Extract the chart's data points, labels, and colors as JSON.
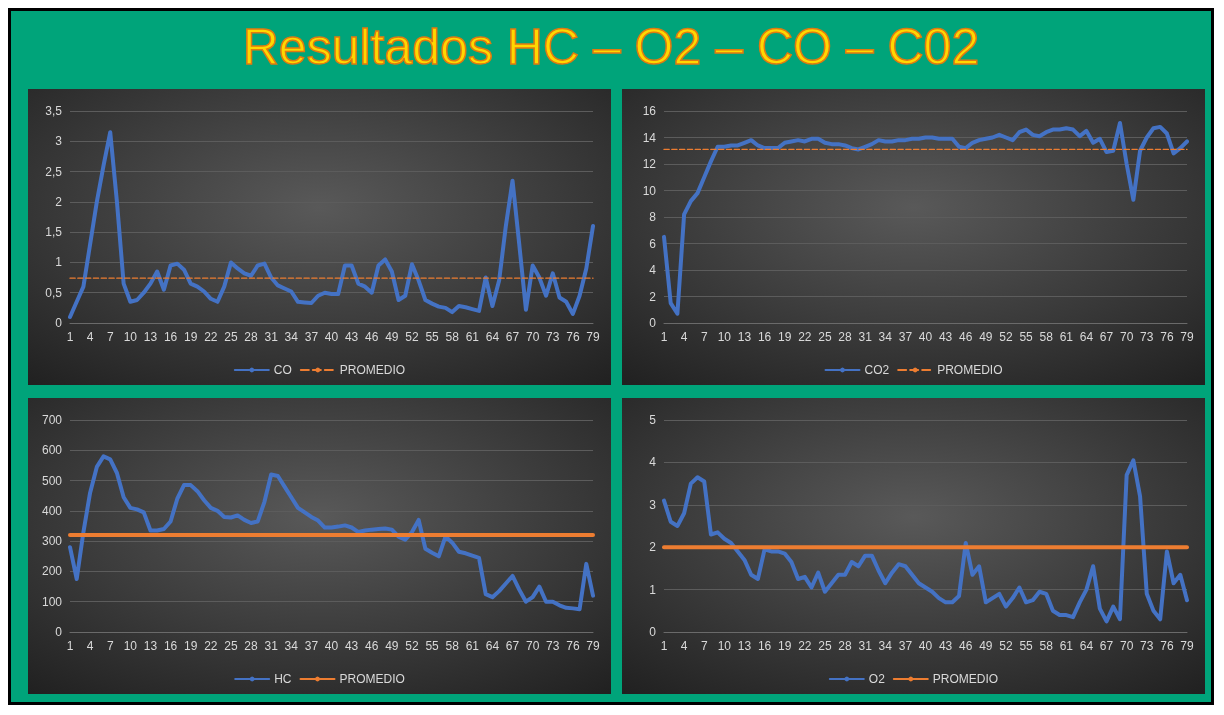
{
  "chart_data": [
    {
      "type": "other",
      "title": "Resultados HC – O2 – CO – C02"
    },
    {
      "type": "line",
      "categories": [
        "1",
        null,
        null,
        "4",
        null,
        null,
        "7",
        null,
        null,
        "10",
        null,
        null,
        "13",
        null,
        null,
        "16",
        null,
        null,
        "19",
        null,
        null,
        "22",
        null,
        null,
        "25",
        null,
        null,
        "28",
        null,
        null,
        "31",
        null,
        null,
        "34",
        null,
        null,
        "37",
        null,
        null,
        "40",
        null,
        null,
        "43",
        null,
        null,
        "46",
        null,
        null,
        "49",
        null,
        null,
        "52",
        null,
        null,
        "55",
        null,
        null,
        "58",
        null,
        null,
        "61",
        null,
        null,
        "64",
        null,
        null,
        "67",
        null,
        null,
        "70",
        null,
        null,
        "73",
        null,
        null,
        "76",
        null,
        null,
        "79"
      ],
      "ylim": [
        0,
        3.5
      ],
      "yticks": [
        0,
        {
          "value": 0.5,
          "label": "0,5"
        },
        1,
        {
          "value": 1.5,
          "label": "1,5"
        },
        2,
        {
          "value": 2.5,
          "label": "2,5"
        },
        3,
        {
          "value": 3.5,
          "label": "3,5"
        }
      ],
      "grid": "y",
      "legend": "bottom",
      "marker": "none",
      "series": [
        {
          "name": "CO",
          "color": "#4472c4",
          "line_style": "solid",
          "values": [
            0.1,
            0.35,
            0.6,
            1.3,
            2.0,
            2.6,
            3.15,
            2.0,
            0.65,
            0.35,
            0.38,
            0.5,
            0.65,
            0.85,
            0.55,
            0.95,
            0.98,
            0.88,
            0.65,
            0.6,
            0.52,
            0.4,
            0.35,
            0.6,
            1.0,
            0.9,
            0.82,
            0.78,
            0.95,
            0.98,
            0.75,
            0.62,
            0.57,
            0.52,
            0.35,
            0.34,
            0.33,
            0.45,
            0.5,
            0.48,
            0.48,
            0.95,
            0.95,
            0.65,
            0.6,
            0.5,
            0.95,
            1.05,
            0.85,
            0.38,
            0.45,
            0.97,
            0.7,
            0.38,
            0.32,
            0.27,
            0.25,
            0.18,
            0.28,
            0.26,
            0.23,
            0.2,
            0.75,
            0.28,
            0.7,
            1.6,
            2.35,
            1.3,
            0.22,
            0.95,
            0.75,
            0.45,
            0.82,
            0.42,
            0.35,
            0.15,
            0.45,
            0.9,
            1.6
          ]
        },
        {
          "name": "PROMEDIO",
          "color": "#ed7d31",
          "line_style": "dashed",
          "values": [
            0.74,
            0.74,
            0.74,
            0.74,
            0.74,
            0.74,
            0.74,
            0.74,
            0.74,
            0.74,
            0.74,
            0.74,
            0.74,
            0.74,
            0.74,
            0.74,
            0.74,
            0.74,
            0.74,
            0.74,
            0.74,
            0.74,
            0.74,
            0.74,
            0.74,
            0.74,
            0.74,
            0.74,
            0.74,
            0.74,
            0.74,
            0.74,
            0.74,
            0.74,
            0.74,
            0.74,
            0.74,
            0.74,
            0.74,
            0.74,
            0.74,
            0.74,
            0.74,
            0.74,
            0.74,
            0.74,
            0.74,
            0.74,
            0.74,
            0.74,
            0.74,
            0.74,
            0.74,
            0.74,
            0.74,
            0.74,
            0.74,
            0.74,
            0.74,
            0.74,
            0.74,
            0.74,
            0.74,
            0.74,
            0.74,
            0.74,
            0.74,
            0.74,
            0.74,
            0.74,
            0.74,
            0.74,
            0.74,
            0.74,
            0.74,
            0.74,
            0.74,
            0.74,
            0.74
          ]
        }
      ]
    },
    {
      "type": "line",
      "categories": [
        "1",
        null,
        null,
        "4",
        null,
        null,
        "7",
        null,
        null,
        "10",
        null,
        null,
        "13",
        null,
        null,
        "16",
        null,
        null,
        "19",
        null,
        null,
        "22",
        null,
        null,
        "25",
        null,
        null,
        "28",
        null,
        null,
        "31",
        null,
        null,
        "34",
        null,
        null,
        "37",
        null,
        null,
        "40",
        null,
        null,
        "43",
        null,
        null,
        "46",
        null,
        null,
        "49",
        null,
        null,
        "52",
        null,
        null,
        "55",
        null,
        null,
        "58",
        null,
        null,
        "61",
        null,
        null,
        "64",
        null,
        null,
        "67",
        null,
        null,
        "70",
        null,
        null,
        "73",
        null,
        null,
        "76",
        null,
        null,
        "79"
      ],
      "ylim": [
        0,
        16
      ],
      "yticks": [
        0,
        2,
        4,
        6,
        8,
        10,
        12,
        14,
        16
      ],
      "grid": "y",
      "legend": "bottom",
      "marker": "none",
      "series": [
        {
          "name": "CO2",
          "color": "#4472c4",
          "line_style": "solid",
          "values": [
            6.5,
            1.5,
            0.7,
            8.2,
            9.2,
            9.8,
            11,
            12.2,
            13.3,
            13.3,
            13.4,
            13.4,
            13.6,
            13.8,
            13.4,
            13.2,
            13.2,
            13.2,
            13.6,
            13.7,
            13.8,
            13.7,
            13.9,
            13.9,
            13.6,
            13.5,
            13.5,
            13.4,
            13.2,
            13.1,
            13.3,
            13.5,
            13.8,
            13.7,
            13.7,
            13.8,
            13.8,
            13.9,
            13.9,
            14.0,
            14.0,
            13.9,
            13.9,
            13.9,
            13.3,
            13.2,
            13.6,
            13.8,
            13.9,
            14.0,
            14.2,
            14.0,
            13.8,
            14.4,
            14.6,
            14.2,
            14.1,
            14.4,
            14.6,
            14.6,
            14.7,
            14.6,
            14.1,
            14.5,
            13.6,
            13.9,
            12.9,
            13.0,
            15.1,
            12.0,
            9.3,
            13.0,
            14.0,
            14.7,
            14.8,
            14.3,
            12.8,
            13.2,
            13.7
          ]
        },
        {
          "name": "PROMEDIO",
          "color": "#ed7d31",
          "line_style": "dashed",
          "values": [
            13.1,
            13.1,
            13.1,
            13.1,
            13.1,
            13.1,
            13.1,
            13.1,
            13.1,
            13.1,
            13.1,
            13.1,
            13.1,
            13.1,
            13.1,
            13.1,
            13.1,
            13.1,
            13.1,
            13.1,
            13.1,
            13.1,
            13.1,
            13.1,
            13.1,
            13.1,
            13.1,
            13.1,
            13.1,
            13.1,
            13.1,
            13.1,
            13.1,
            13.1,
            13.1,
            13.1,
            13.1,
            13.1,
            13.1,
            13.1,
            13.1,
            13.1,
            13.1,
            13.1,
            13.1,
            13.1,
            13.1,
            13.1,
            13.1,
            13.1,
            13.1,
            13.1,
            13.1,
            13.1,
            13.1,
            13.1,
            13.1,
            13.1,
            13.1,
            13.1,
            13.1,
            13.1,
            13.1,
            13.1,
            13.1,
            13.1,
            13.1,
            13.1,
            13.1,
            13.1,
            13.1,
            13.1,
            13.1,
            13.1,
            13.1,
            13.1,
            13.1,
            13.1,
            13.1
          ]
        }
      ]
    },
    {
      "type": "line",
      "categories": [
        "1",
        null,
        null,
        "4",
        null,
        null,
        "7",
        null,
        null,
        "10",
        null,
        null,
        "13",
        null,
        null,
        "16",
        null,
        null,
        "19",
        null,
        null,
        "22",
        null,
        null,
        "25",
        null,
        null,
        "28",
        null,
        null,
        "31",
        null,
        null,
        "34",
        null,
        null,
        "37",
        null,
        null,
        "40",
        null,
        null,
        "43",
        null,
        null,
        "46",
        null,
        null,
        "49",
        null,
        null,
        "52",
        null,
        null,
        "55",
        null,
        null,
        "58",
        null,
        null,
        "61",
        null,
        null,
        "64",
        null,
        null,
        "67",
        null,
        null,
        "70",
        null,
        null,
        "73",
        null,
        null,
        "76",
        null,
        null,
        "79"
      ],
      "ylim": [
        0,
        700
      ],
      "yticks": [
        0,
        100,
        200,
        300,
        400,
        500,
        600,
        700
      ],
      "grid": "y",
      "legend": "bottom",
      "marker": "none",
      "series": [
        {
          "name": "HC",
          "color": "#4472c4",
          "line_style": "solid",
          "values": [
            280,
            175,
            330,
            460,
            545,
            580,
            570,
            525,
            445,
            410,
            405,
            395,
            335,
            335,
            340,
            365,
            440,
            485,
            485,
            465,
            435,
            410,
            400,
            380,
            378,
            385,
            370,
            360,
            365,
            430,
            520,
            515,
            480,
            445,
            410,
            395,
            380,
            368,
            345,
            345,
            348,
            352,
            345,
            330,
            335,
            338,
            340,
            342,
            338,
            315,
            305,
            330,
            370,
            275,
            262,
            250,
            315,
            295,
            265,
            260,
            252,
            245,
            125,
            115,
            135,
            160,
            185,
            140,
            100,
            115,
            150,
            100,
            100,
            88,
            80,
            78,
            75,
            225,
            120
          ]
        },
        {
          "name": "PROMEDIO",
          "color": "#ed7d31",
          "line_style": "solid",
          "values": [
            320,
            320,
            320,
            320,
            320,
            320,
            320,
            320,
            320,
            320,
            320,
            320,
            320,
            320,
            320,
            320,
            320,
            320,
            320,
            320,
            320,
            320,
            320,
            320,
            320,
            320,
            320,
            320,
            320,
            320,
            320,
            320,
            320,
            320,
            320,
            320,
            320,
            320,
            320,
            320,
            320,
            320,
            320,
            320,
            320,
            320,
            320,
            320,
            320,
            320,
            320,
            320,
            320,
            320,
            320,
            320,
            320,
            320,
            320,
            320,
            320,
            320,
            320,
            320,
            320,
            320,
            320,
            320,
            320,
            320,
            320,
            320,
            320,
            320,
            320,
            320,
            320,
            320,
            320
          ]
        }
      ]
    },
    {
      "type": "line",
      "categories": [
        "1",
        null,
        null,
        "4",
        null,
        null,
        "7",
        null,
        null,
        "10",
        null,
        null,
        "13",
        null,
        null,
        "16",
        null,
        null,
        "19",
        null,
        null,
        "22",
        null,
        null,
        "25",
        null,
        null,
        "28",
        null,
        null,
        "31",
        null,
        null,
        "34",
        null,
        null,
        "37",
        null,
        null,
        "40",
        null,
        null,
        "43",
        null,
        null,
        "46",
        null,
        null,
        "49",
        null,
        null,
        "52",
        null,
        null,
        "55",
        null,
        null,
        "58",
        null,
        null,
        "61",
        null,
        null,
        "64",
        null,
        null,
        "67",
        null,
        null,
        "70",
        null,
        null,
        "73",
        null,
        null,
        "76",
        null,
        null,
        "79"
      ],
      "ylim": [
        0,
        5
      ],
      "yticks": [
        0,
        1,
        2,
        3,
        4,
        5
      ],
      "grid": "y",
      "legend": "bottom",
      "marker": "none",
      "series": [
        {
          "name": "O2",
          "color": "#4472c4",
          "line_style": "solid",
          "values": [
            3.1,
            2.6,
            2.5,
            2.8,
            3.5,
            3.65,
            3.55,
            2.3,
            2.35,
            2.2,
            2.1,
            1.9,
            1.7,
            1.35,
            1.25,
            1.95,
            1.9,
            1.9,
            1.85,
            1.65,
            1.25,
            1.3,
            1.05,
            1.4,
            0.95,
            1.15,
            1.35,
            1.35,
            1.65,
            1.55,
            1.8,
            1.8,
            1.45,
            1.15,
            1.4,
            1.6,
            1.55,
            1.35,
            1.15,
            1.05,
            0.95,
            0.8,
            0.7,
            0.7,
            0.85,
            2.1,
            1.35,
            1.55,
            0.7,
            0.8,
            0.9,
            0.6,
            0.8,
            1.05,
            0.7,
            0.75,
            0.95,
            0.9,
            0.5,
            0.4,
            0.4,
            0.35,
            0.7,
            1.0,
            1.55,
            0.55,
            0.25,
            0.6,
            0.3,
            3.7,
            4.05,
            3.2,
            0.9,
            0.5,
            0.3,
            1.9,
            1.15,
            1.35,
            0.75
          ]
        },
        {
          "name": "PROMEDIO",
          "color": "#ed7d31",
          "line_style": "solid",
          "values": [
            2,
            2,
            2,
            2,
            2,
            2,
            2,
            2,
            2,
            2,
            2,
            2,
            2,
            2,
            2,
            2,
            2,
            2,
            2,
            2,
            2,
            2,
            2,
            2,
            2,
            2,
            2,
            2,
            2,
            2,
            2,
            2,
            2,
            2,
            2,
            2,
            2,
            2,
            2,
            2,
            2,
            2,
            2,
            2,
            2,
            2,
            2,
            2,
            2,
            2,
            2,
            2,
            2,
            2,
            2,
            2,
            2,
            2,
            2,
            2,
            2,
            2,
            2,
            2,
            2,
            2,
            2,
            2,
            2,
            2,
            2,
            2,
            2,
            2,
            2,
            2,
            2,
            2,
            2
          ]
        }
      ]
    }
  ]
}
